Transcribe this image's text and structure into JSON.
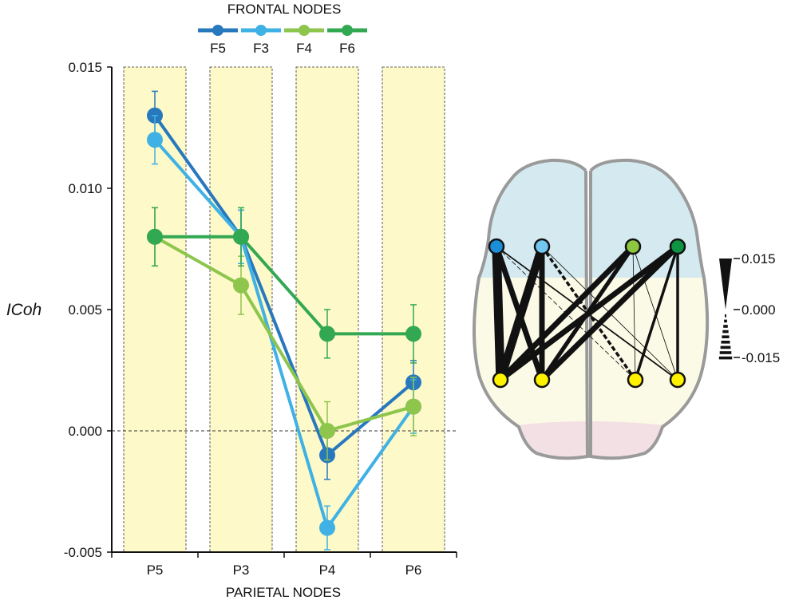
{
  "chart_data": {
    "type": "line",
    "legend_title": "FRONTAL NODES",
    "xlabel": "PARIETAL NODES",
    "ylabel": "ICoh",
    "categories": [
      "P5",
      "P3",
      "P4",
      "P6"
    ],
    "ylim": [
      -0.005,
      0.015
    ],
    "yticks": [
      "-0.005",
      "0.000",
      "0.005",
      "0.010",
      "0.015"
    ],
    "ytick_values": [
      -0.005,
      0.0,
      0.005,
      0.01,
      0.015
    ],
    "grid": false,
    "legend_position": "top",
    "highlight_color": "#fdf9c8",
    "series": [
      {
        "name": "F5",
        "color": "#2878be",
        "values": [
          0.013,
          0.008,
          -0.001,
          0.002
        ],
        "errors": [
          0.001,
          0.0011,
          0.001,
          0.0009
        ]
      },
      {
        "name": "F3",
        "color": "#3fb1e4",
        "values": [
          0.012,
          0.008,
          -0.004,
          0.001
        ],
        "errors": [
          0.001,
          0.0011,
          0.0009,
          0.0011
        ]
      },
      {
        "name": "F4",
        "color": "#8dc54d",
        "values": [
          0.008,
          0.006,
          0.0,
          0.001
        ],
        "errors": [
          0.0012,
          0.0012,
          0.0012,
          0.0012
        ]
      },
      {
        "name": "F6",
        "color": "#33a852",
        "values": [
          0.008,
          0.008,
          0.004,
          0.004
        ],
        "errors": [
          0.0012,
          0.0012,
          0.001,
          0.0012
        ]
      }
    ]
  },
  "brain_map": {
    "scale_ticks": [
      "0.015",
      "0.000",
      "-0.015"
    ],
    "scale_values": [
      0.015,
      0.0,
      -0.015
    ],
    "frontal_nodes": [
      {
        "color": "#1a8fd8"
      },
      {
        "color": "#73c6ef"
      },
      {
        "color": "#8dc63f"
      },
      {
        "color": "#0f9444"
      }
    ],
    "parietal_color": "#fff200",
    "region_colors": {
      "frontal": "#d4eaf0",
      "parietal": "#fbfae6",
      "occipital": "#f3e0e4",
      "outline": "#9a9a9a"
    }
  }
}
